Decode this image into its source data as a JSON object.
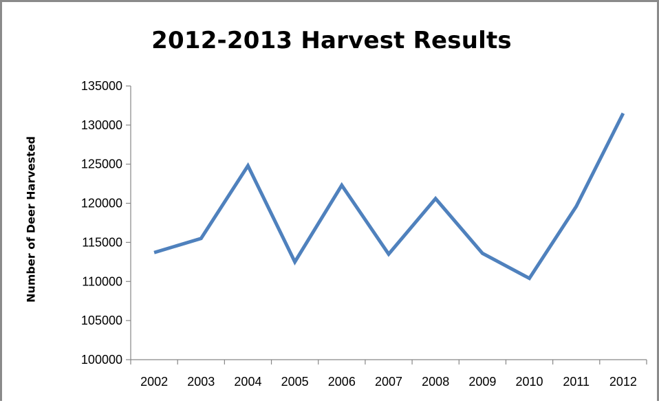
{
  "chart_data": {
    "type": "line",
    "title": "2012-2013 Harvest Results",
    "xlabel": "",
    "ylabel": "Number of Deer Harvested",
    "categories": [
      "2002",
      "2003",
      "2004",
      "2005",
      "2006",
      "2007",
      "2008",
      "2009",
      "2010",
      "2011",
      "2012"
    ],
    "series": [
      {
        "values": [
          113700,
          115500,
          124800,
          112500,
          122300,
          113500,
          120600,
          113600,
          110400,
          119600,
          131500
        ]
      }
    ],
    "ylim": [
      100000,
      135000
    ],
    "yticks": [
      100000,
      105000,
      110000,
      115000,
      120000,
      125000,
      130000,
      135000
    ],
    "ytick_labels": [
      "100000",
      "105000",
      "110000",
      "115000",
      "120000",
      "125000",
      "130000",
      "135000"
    ],
    "line_color": "#4f81bd",
    "grid": false,
    "legend": "none"
  }
}
